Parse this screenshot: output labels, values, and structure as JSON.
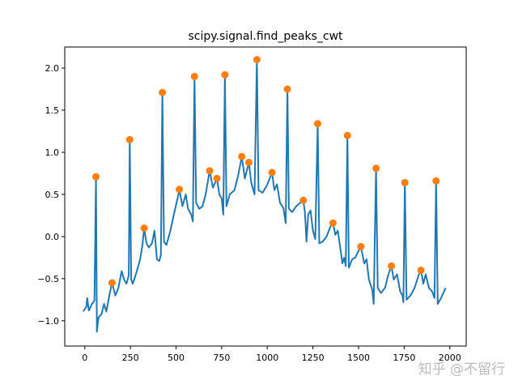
{
  "chart_data": {
    "type": "line",
    "title": "scipy.signal.find_peaks_cwt",
    "xlabel": "",
    "ylabel": "",
    "xlim": [
      -110,
      2090
    ],
    "ylim": [
      -1.3,
      2.25
    ],
    "xticks": [
      0,
      250,
      500,
      750,
      1000,
      1250,
      1500,
      1750,
      2000
    ],
    "xtick_labels": [
      "0",
      "250",
      "500",
      "750",
      "1000",
      "1250",
      "1500",
      "1750",
      "2000"
    ],
    "yticks": [
      -1.0,
      -0.5,
      0.0,
      0.5,
      1.0,
      1.5,
      2.0
    ],
    "ytick_labels": [
      "−1.0",
      "−0.5",
      "0.0",
      "0.5",
      "1.0",
      "1.5",
      "2.0"
    ],
    "grid": false,
    "series": [
      {
        "kind": "line",
        "color": "#1f77b4",
        "points": [
          [
            -9,
            -0.89
          ],
          [
            9,
            -0.83
          ],
          [
            13,
            -0.73
          ],
          [
            22,
            -0.88
          ],
          [
            39,
            -0.8
          ],
          [
            53,
            -0.76
          ],
          [
            61,
            0.71
          ],
          [
            66,
            -1.13
          ],
          [
            75,
            -0.96
          ],
          [
            92,
            -0.92
          ],
          [
            105,
            -0.8
          ],
          [
            118,
            -0.89
          ],
          [
            136,
            -0.68
          ],
          [
            149,
            -0.55
          ],
          [
            167,
            -0.7
          ],
          [
            184,
            -0.61
          ],
          [
            202,
            -0.41
          ],
          [
            215,
            -0.51
          ],
          [
            228,
            -0.56
          ],
          [
            241,
            -0.46
          ],
          [
            246,
            1.15
          ],
          [
            254,
            -0.51
          ],
          [
            263,
            -0.56
          ],
          [
            285,
            -0.41
          ],
          [
            303,
            -0.27
          ],
          [
            316,
            -0.1
          ],
          [
            325,
            0.1
          ],
          [
            338,
            -0.08
          ],
          [
            351,
            -0.13
          ],
          [
            368,
            -0.08
          ],
          [
            382,
            0.07
          ],
          [
            395,
            -0.27
          ],
          [
            408,
            -0.29
          ],
          [
            417,
            -0.22
          ],
          [
            425,
            1.71
          ],
          [
            434,
            -0.06
          ],
          [
            447,
            -0.1
          ],
          [
            469,
            0.07
          ],
          [
            491,
            0.29
          ],
          [
            513,
            0.5
          ],
          [
            518,
            0.56
          ],
          [
            535,
            0.36
          ],
          [
            553,
            0.5
          ],
          [
            566,
            0.33
          ],
          [
            583,
            0.26
          ],
          [
            592,
            0.18
          ],
          [
            601,
            1.9
          ],
          [
            610,
            0.4
          ],
          [
            627,
            0.33
          ],
          [
            645,
            0.36
          ],
          [
            662,
            0.5
          ],
          [
            684,
            0.78
          ],
          [
            702,
            0.58
          ],
          [
            724,
            0.69
          ],
          [
            737,
            0.5
          ],
          [
            750,
            0.45
          ],
          [
            759,
            0.26
          ],
          [
            768,
            1.92
          ],
          [
            776,
            0.36
          ],
          [
            794,
            0.5
          ],
          [
            820,
            0.55
          ],
          [
            842,
            0.74
          ],
          [
            860,
            0.95
          ],
          [
            877,
            0.69
          ],
          [
            899,
            0.88
          ],
          [
            912,
            0.64
          ],
          [
            930,
            0.5
          ],
          [
            943,
            2.1
          ],
          [
            952,
            0.55
          ],
          [
            974,
            0.52
          ],
          [
            996,
            0.6
          ],
          [
            1013,
            0.69
          ],
          [
            1026,
            0.76
          ],
          [
            1039,
            0.55
          ],
          [
            1053,
            0.62
          ],
          [
            1070,
            0.4
          ],
          [
            1088,
            0.34
          ],
          [
            1101,
            0.16
          ],
          [
            1110,
            1.75
          ],
          [
            1118,
            0.33
          ],
          [
            1136,
            0.29
          ],
          [
            1158,
            0.36
          ],
          [
            1180,
            0.4
          ],
          [
            1197,
            0.43
          ],
          [
            1206,
            0.29
          ],
          [
            1215,
            -0.06
          ],
          [
            1224,
            0.26
          ],
          [
            1237,
            0.31
          ],
          [
            1250,
            0.07
          ],
          [
            1263,
            -0.03
          ],
          [
            1276,
            1.34
          ],
          [
            1285,
            -0.08
          ],
          [
            1303,
            -0.06
          ],
          [
            1325,
            0
          ],
          [
            1346,
            0.12
          ],
          [
            1360,
            0.16
          ],
          [
            1373,
            0.02
          ],
          [
            1386,
            0.07
          ],
          [
            1399,
            -0.12
          ],
          [
            1412,
            -0.32
          ],
          [
            1421,
            -0.25
          ],
          [
            1430,
            -0.35
          ],
          [
            1439,
            1.2
          ],
          [
            1447,
            -0.37
          ],
          [
            1465,
            -0.27
          ],
          [
            1482,
            -0.25
          ],
          [
            1500,
            -0.17
          ],
          [
            1513,
            -0.12
          ],
          [
            1531,
            -0.32
          ],
          [
            1544,
            -0.27
          ],
          [
            1557,
            -0.51
          ],
          [
            1575,
            -0.63
          ],
          [
            1583,
            -0.8
          ],
          [
            1596,
            0.81
          ],
          [
            1605,
            -0.61
          ],
          [
            1623,
            -0.67
          ],
          [
            1645,
            -0.61
          ],
          [
            1662,
            -0.46
          ],
          [
            1680,
            -0.35
          ],
          [
            1693,
            -0.51
          ],
          [
            1711,
            -0.45
          ],
          [
            1728,
            -0.65
          ],
          [
            1741,
            -0.7
          ],
          [
            1746,
            -0.78
          ],
          [
            1754,
            0.64
          ],
          [
            1763,
            -0.75
          ],
          [
            1785,
            -0.7
          ],
          [
            1807,
            -0.61
          ],
          [
            1829,
            -0.46
          ],
          [
            1842,
            -0.4
          ],
          [
            1855,
            -0.56
          ],
          [
            1868,
            -0.45
          ],
          [
            1886,
            -0.61
          ],
          [
            1903,
            -0.65
          ],
          [
            1916,
            -0.73
          ],
          [
            1925,
            0.66
          ],
          [
            1934,
            -0.8
          ],
          [
            1952,
            -0.73
          ],
          [
            1969,
            -0.65
          ],
          [
            1978,
            -0.61
          ]
        ]
      },
      {
        "kind": "scatter",
        "color": "#ff7f0e",
        "points": [
          [
            61,
            0.71
          ],
          [
            149,
            -0.55
          ],
          [
            246,
            1.15
          ],
          [
            325,
            0.1
          ],
          [
            425,
            1.71
          ],
          [
            518,
            0.56
          ],
          [
            601,
            1.9
          ],
          [
            684,
            0.78
          ],
          [
            724,
            0.69
          ],
          [
            768,
            1.92
          ],
          [
            860,
            0.95
          ],
          [
            899,
            0.88
          ],
          [
            943,
            2.1
          ],
          [
            1026,
            0.76
          ],
          [
            1110,
            1.75
          ],
          [
            1197,
            0.43
          ],
          [
            1276,
            1.34
          ],
          [
            1360,
            0.16
          ],
          [
            1439,
            1.2
          ],
          [
            1513,
            -0.12
          ],
          [
            1596,
            0.81
          ],
          [
            1680,
            -0.35
          ],
          [
            1754,
            0.64
          ],
          [
            1842,
            -0.4
          ],
          [
            1925,
            0.66
          ]
        ]
      }
    ]
  },
  "watermark": "知乎 @不留行"
}
